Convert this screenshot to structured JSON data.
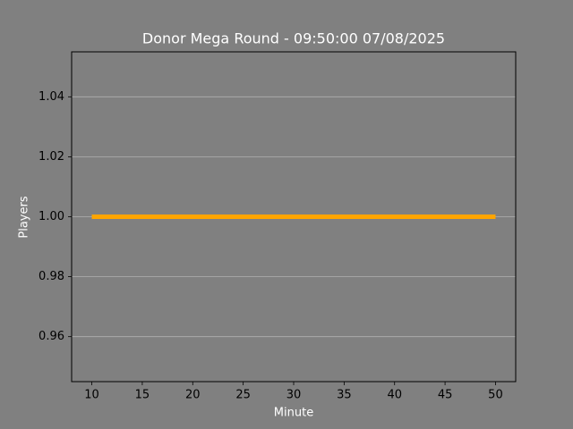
{
  "chart_data": {
    "type": "line",
    "title": "Donor Mega Round - 09:50:00 07/08/2025",
    "x_label": "Minute",
    "y_label": "Players",
    "x": [
      10,
      20,
      30,
      40,
      50
    ],
    "series": [
      {
        "name": "Players",
        "color": "#ffa500",
        "values": [
          1,
          1,
          1,
          1,
          1
        ]
      }
    ],
    "xlim": [
      8,
      52
    ],
    "xticks": [
      10,
      15,
      20,
      25,
      30,
      35,
      40,
      45,
      50
    ],
    "ylim": [
      0.945,
      1.055
    ],
    "yticks": [
      0.96,
      0.98,
      {
        "value": 1.0,
        "label": "1.00"
      },
      1.02,
      1.04
    ],
    "grid": true,
    "legend": false
  }
}
